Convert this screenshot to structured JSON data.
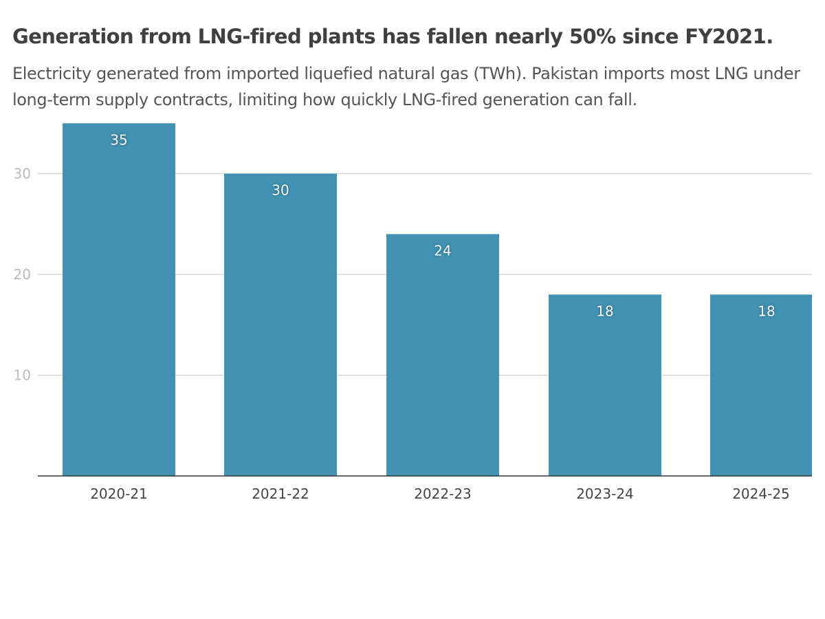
{
  "chart_data": {
    "type": "bar",
    "title": "Generation from LNG-fired plants has fallen nearly 50% since FY2021.",
    "subtitle": "Electricity generated from imported liquefied natural gas (TWh). Pakistan imports most LNG under long-term supply contracts, limiting how quickly LNG-fired generation can fall.",
    "categories": [
      "2020-21",
      "2021-22",
      "2022-23",
      "2023-24",
      "2024-25"
    ],
    "values": [
      35,
      30,
      24,
      18,
      18
    ],
    "value_labels": [
      "35",
      "30",
      "24",
      "18",
      "18"
    ],
    "yticks": [
      10,
      20,
      30
    ],
    "ytick_labels": [
      "10",
      "20",
      "30"
    ],
    "ylim": [
      0,
      35
    ],
    "grid": true,
    "xlabel": "",
    "ylabel": "",
    "colors": {
      "bar": "#4192b3",
      "grid": "#d0d0d0",
      "axis": "#333333"
    }
  }
}
